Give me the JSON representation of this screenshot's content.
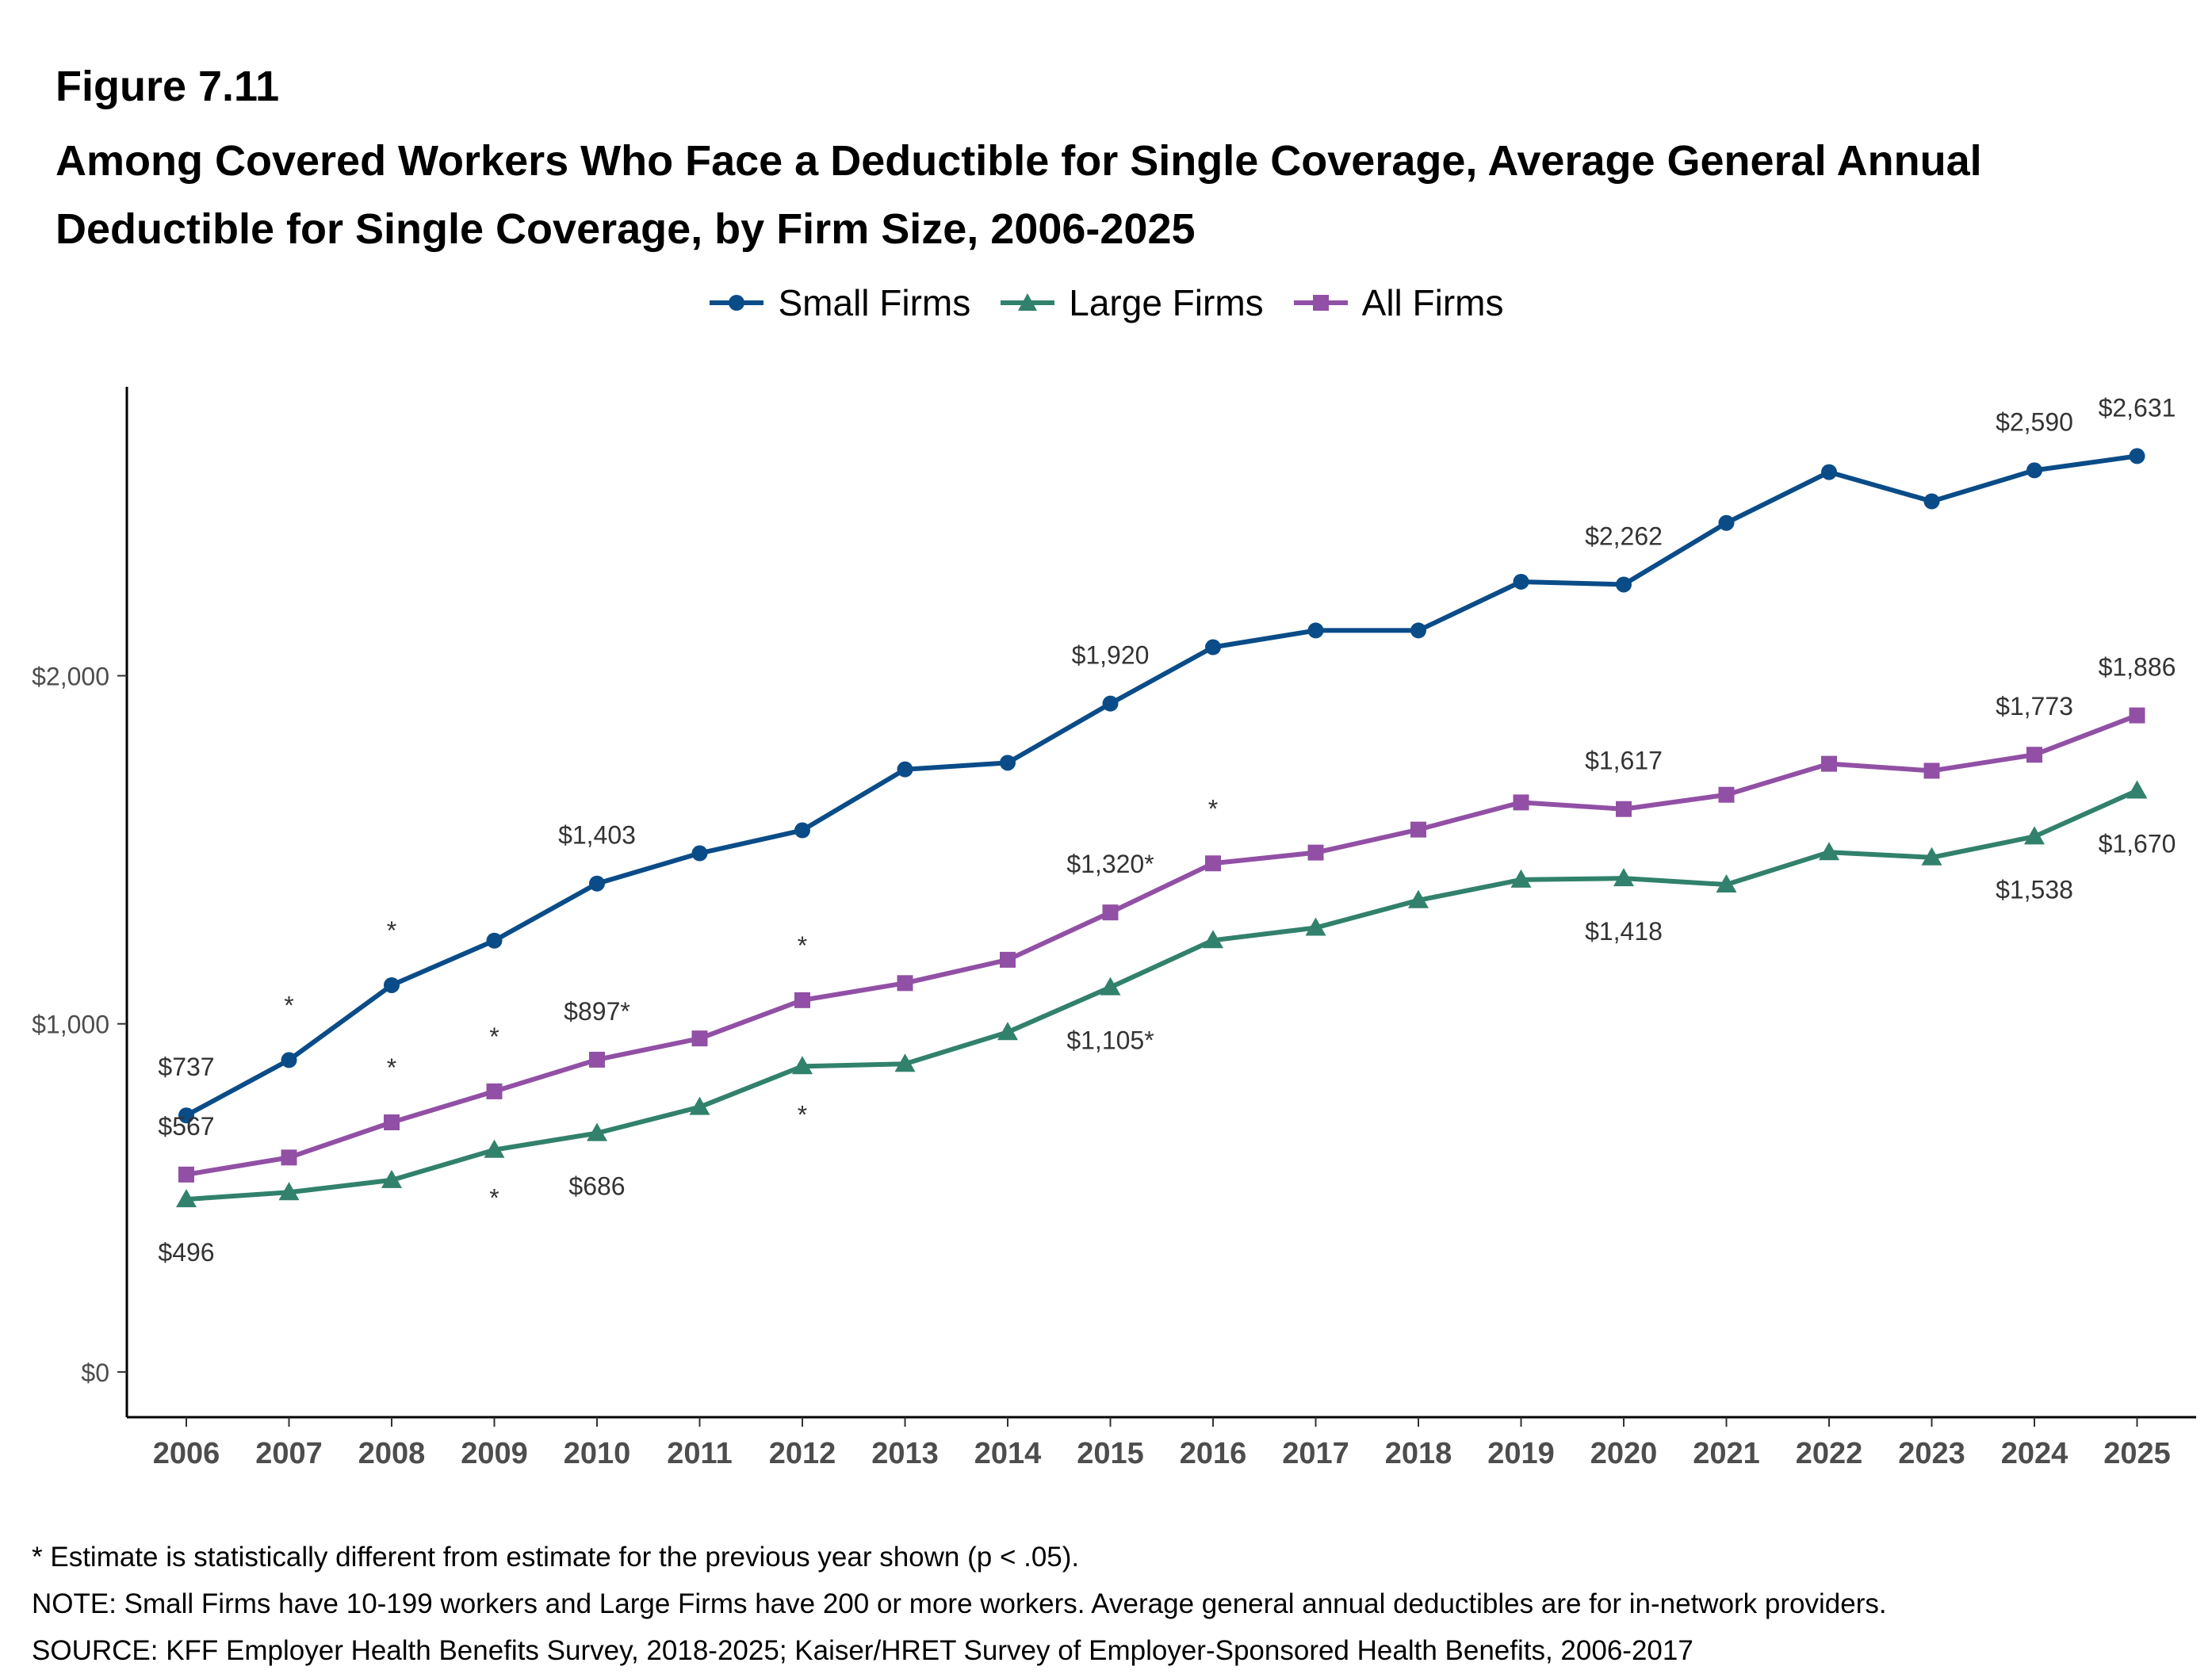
{
  "figure_label": "Figure 7.11",
  "title": "Among Covered Workers Who Face a Deductible for Single Coverage, Average General Annual Deductible for Single Coverage, by Firm Size, 2006-2025",
  "colors": {
    "small": "#0a4c88",
    "large": "#31816c",
    "all": "#9150a5"
  },
  "chart_data": {
    "type": "line",
    "x": [
      "2006",
      "2007",
      "2008",
      "2009",
      "2010",
      "2011",
      "2012",
      "2013",
      "2014",
      "2015",
      "2016",
      "2017",
      "2018",
      "2019",
      "2020",
      "2021",
      "2022",
      "2023",
      "2024",
      "2025"
    ],
    "ylim": [
      -130,
      2830
    ],
    "yticks": [
      0,
      1000,
      2000
    ],
    "ytick_labels": [
      "$0",
      "$1,000",
      "$2,000"
    ],
    "grid": false,
    "legend_position": "top",
    "series": [
      {
        "key": "small",
        "name": "Small Firms",
        "marker": "circle",
        "values": [
          737,
          896,
          1111,
          1239,
          1403,
          1490,
          1556,
          1731,
          1750,
          1920,
          2082,
          2130,
          2130,
          2270,
          2262,
          2439,
          2585,
          2501,
          2590,
          2631
        ],
        "labels": [
          {
            "index": 0,
            "text": "$737",
            "pos": "above"
          },
          {
            "index": 4,
            "text": "$1,403",
            "pos": "above"
          },
          {
            "index": 9,
            "text": "$1,920",
            "pos": "above"
          },
          {
            "index": 14,
            "text": "$2,262",
            "pos": "above"
          },
          {
            "index": 18,
            "text": "$2,590",
            "pos": "above"
          },
          {
            "index": 19,
            "text": "$2,631",
            "pos": "above"
          }
        ],
        "significance": [
          {
            "index": 1,
            "text": "*",
            "pos": "above"
          },
          {
            "index": 2,
            "text": "*",
            "pos": "above"
          }
        ]
      },
      {
        "key": "large",
        "name": "Large Firms",
        "marker": "triangle",
        "values": [
          496,
          516,
          551,
          638,
          686,
          761,
          878,
          885,
          976,
          1105,
          1240,
          1276,
          1355,
          1414,
          1418,
          1400,
          1493,
          1478,
          1538,
          1670
        ],
        "labels": [
          {
            "index": 0,
            "text": "$496",
            "pos": "below"
          },
          {
            "index": 4,
            "text": "$686",
            "pos": "below"
          },
          {
            "index": 9,
            "text": "$1,105*",
            "pos": "below"
          },
          {
            "index": 14,
            "text": "$1,418",
            "pos": "below"
          },
          {
            "index": 18,
            "text": "$1,538",
            "pos": "below"
          },
          {
            "index": 19,
            "text": "$1,670",
            "pos": "below"
          }
        ],
        "significance": [
          {
            "index": 3,
            "text": "*",
            "pos": "below"
          },
          {
            "index": 6,
            "text": "*",
            "pos": "below"
          }
        ]
      },
      {
        "key": "all",
        "name": "All Firms",
        "marker": "square",
        "values": [
          567,
          616,
          717,
          806,
          897,
          958,
          1068,
          1117,
          1184,
          1320,
          1461,
          1492,
          1558,
          1636,
          1617,
          1658,
          1747,
          1727,
          1773,
          1886
        ],
        "labels": [
          {
            "index": 0,
            "text": "$567",
            "pos": "above"
          },
          {
            "index": 4,
            "text": "$897*",
            "pos": "above"
          },
          {
            "index": 9,
            "text": "$1,320*",
            "pos": "above"
          },
          {
            "index": 14,
            "text": "$1,617",
            "pos": "above"
          },
          {
            "index": 18,
            "text": "$1,773",
            "pos": "above"
          },
          {
            "index": 19,
            "text": "$1,886",
            "pos": "above"
          }
        ],
        "significance": [
          {
            "index": 2,
            "text": "*",
            "pos": "above"
          },
          {
            "index": 3,
            "text": "*",
            "pos": "above"
          },
          {
            "index": 6,
            "text": "*",
            "pos": "above"
          },
          {
            "index": 10,
            "text": "*",
            "pos": "above"
          }
        ]
      }
    ]
  },
  "notes": {
    "significance": "* Estimate is statistically different from estimate for the previous year shown (p < .05).",
    "note": "NOTE: Small Firms have 10-199 workers and Large Firms have 200 or more workers. Average general annual deductibles are for in-network providers.",
    "source": "SOURCE: KFF Employer Health Benefits Survey, 2018-2025; Kaiser/HRET Survey of Employer-Sponsored Health Benefits, 2006-2017"
  }
}
